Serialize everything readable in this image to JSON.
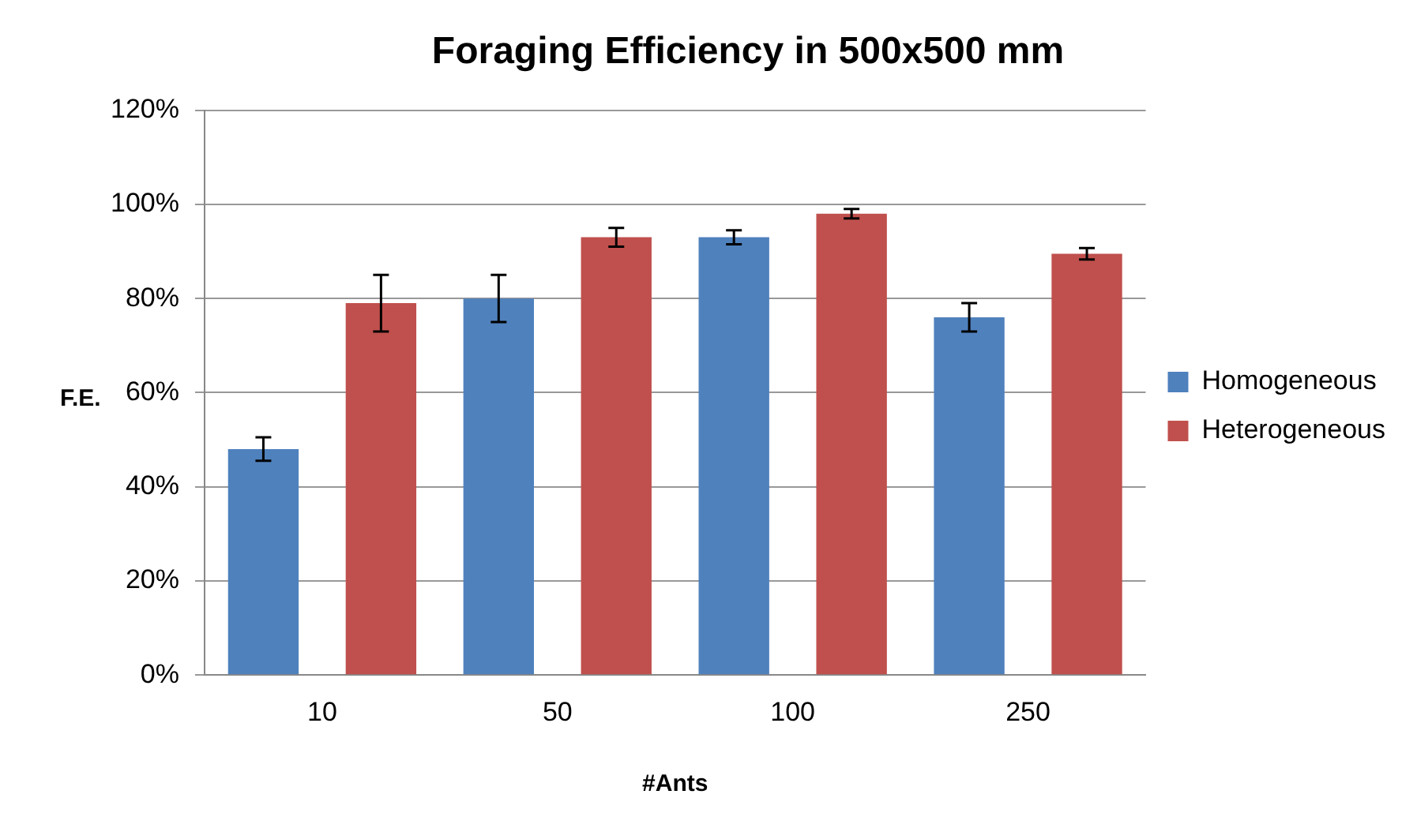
{
  "chart_data": {
    "type": "bar",
    "title": "Foraging Efficiency in 500x500 mm",
    "xlabel": "#Ants",
    "ylabel": "F.E.",
    "categories": [
      "10",
      "50",
      "100",
      "250"
    ],
    "series": [
      {
        "name": "Homogeneous",
        "color": "#4f81bd",
        "values": [
          48,
          80,
          93,
          76
        ],
        "errors": [
          2.5,
          5,
          1.5,
          3
        ]
      },
      {
        "name": "Heterogeneous",
        "color": "#c0504d",
        "values": [
          79,
          93,
          98,
          89.5
        ],
        "errors": [
          6,
          2,
          1,
          1.2
        ]
      }
    ],
    "ylim": [
      0,
      120
    ],
    "yticks": [
      {
        "value": 0,
        "label": "0%"
      },
      {
        "value": 20,
        "label": "20%"
      },
      {
        "value": 40,
        "label": "40%"
      },
      {
        "value": 60,
        "label": "60%"
      },
      {
        "value": 80,
        "label": "80%"
      },
      {
        "value": 100,
        "label": "100%"
      },
      {
        "value": 120,
        "label": "120%"
      }
    ],
    "grid": "y",
    "legend": "right"
  }
}
